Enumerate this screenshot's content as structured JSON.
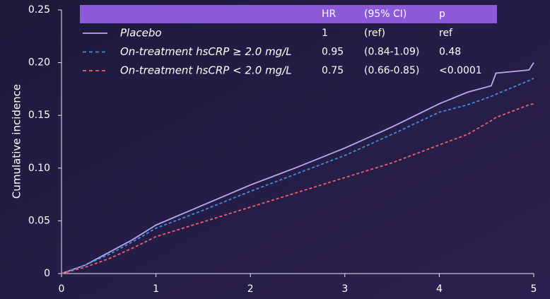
{
  "chart_data": {
    "type": "line",
    "ylabel": "Cumulative incidence",
    "x": [
      0,
      0.25,
      0.5,
      0.75,
      1,
      1.5,
      2,
      2.5,
      3,
      3.5,
      4,
      4.3,
      4.55,
      4.6,
      4.95,
      5
    ],
    "series": [
      {
        "name": "Placebo",
        "color": "#b9a9f0",
        "style": "solid",
        "values": [
          0,
          0.008,
          0.02,
          0.032,
          0.046,
          0.065,
          0.084,
          0.101,
          0.119,
          0.139,
          0.161,
          0.172,
          0.178,
          0.19,
          0.193,
          0.2
        ]
      },
      {
        "name": "On-treatment hsCRP ≥ 2.0 mg/L",
        "color": "#3d8fe0",
        "style": "dashed",
        "values": [
          0,
          0.008,
          0.018,
          0.03,
          0.043,
          0.06,
          0.078,
          0.095,
          0.112,
          0.132,
          0.153,
          0.16,
          0.168,
          0.17,
          0.183,
          0.185
        ]
      },
      {
        "name": "On-treatment hsCRP < 2.0 mg/L",
        "color": "#f0606a",
        "style": "dashed",
        "values": [
          0,
          0.006,
          0.014,
          0.024,
          0.035,
          0.049,
          0.063,
          0.077,
          0.091,
          0.105,
          0.122,
          0.132,
          0.145,
          0.148,
          0.16,
          0.161
        ]
      }
    ],
    "table": {
      "columns": [
        "HR",
        "(95% CI)",
        "p"
      ],
      "rows": [
        [
          "1",
          "(ref)",
          "ref"
        ],
        [
          "0.95",
          "(0.84-1.09)",
          "0.48"
        ],
        [
          "0.75",
          "(0.66-0.85)",
          "<0.0001"
        ]
      ]
    },
    "xlim": [
      0,
      5
    ],
    "xticks": [
      0,
      1,
      2,
      3,
      4,
      5
    ],
    "ylim": [
      0,
      0.25
    ],
    "yticks": [
      0,
      0.05,
      {
        "value": 0.1,
        "label": "0.10"
      },
      0.15,
      {
        "value": 0.2,
        "label": "0.20"
      },
      0.25
    ]
  }
}
